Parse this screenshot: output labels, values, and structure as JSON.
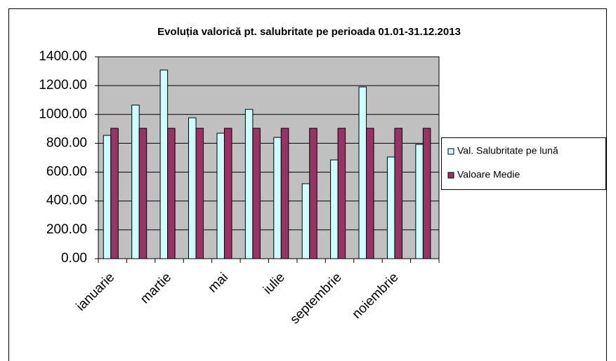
{
  "chart_data": {
    "type": "bar",
    "title": "Evoluția valorică pt. salubritate pe perioada 01.01-31.12.2013",
    "categories": [
      "ianuarie",
      null,
      "martie",
      null,
      "mai",
      null,
      "iulie",
      null,
      "septembrie",
      null,
      "noiembrie",
      null
    ],
    "series": [
      {
        "name": "Val. Salubritate pe lună",
        "color": "#ccffff",
        "values": [
          855,
          1065,
          1308,
          977,
          870,
          1035,
          841,
          520,
          685,
          1191,
          705,
          792
        ]
      },
      {
        "name": "Valoare Medie",
        "color": "#993366",
        "values": [
          904,
          904,
          904,
          904,
          904,
          904,
          904,
          904,
          904,
          904,
          904,
          904
        ]
      }
    ],
    "ylim": [
      0,
      1400
    ],
    "yticks": [
      {
        "value": 0,
        "label": "0.00"
      },
      {
        "value": 200,
        "label": "200.00"
      },
      {
        "value": 400,
        "label": "400.00"
      },
      {
        "value": 600,
        "label": "600.00"
      },
      {
        "value": 800,
        "label": "800.00"
      },
      {
        "value": 1000,
        "label": "1000.00"
      },
      {
        "value": 1200,
        "label": "1200.00"
      },
      {
        "value": 1400,
        "label": "1400.00"
      }
    ],
    "grid": true,
    "legend": "right",
    "plot_background": "#c0c0c0"
  }
}
